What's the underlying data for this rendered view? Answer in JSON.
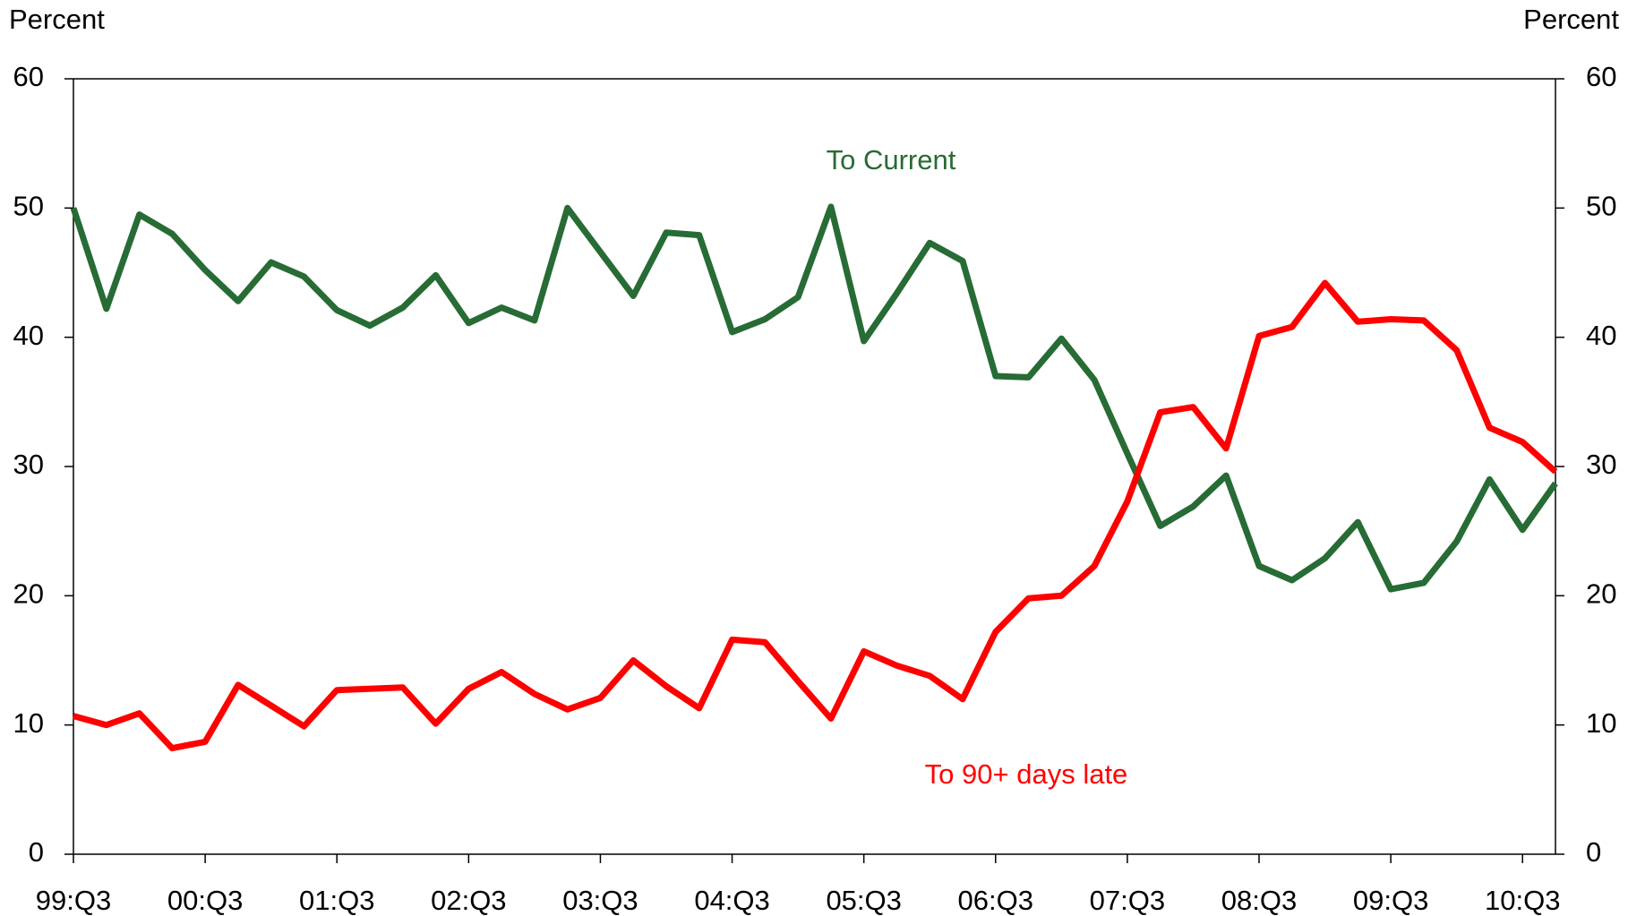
{
  "chart_data": {
    "type": "line",
    "y_label": "Percent",
    "y2_label": "Percent",
    "categories": [
      "99:Q3",
      null,
      null,
      null,
      "00:Q3",
      null,
      null,
      null,
      "01:Q3",
      null,
      null,
      null,
      "02:Q3",
      null,
      null,
      null,
      "03:Q3",
      null,
      null,
      null,
      "04:Q3",
      null,
      null,
      null,
      "05:Q3",
      null,
      null,
      null,
      "06:Q3",
      null,
      null,
      null,
      "07:Q3",
      null,
      null,
      null,
      "08:Q3",
      null,
      null,
      null,
      "09:Q3",
      null,
      null,
      null,
      "10:Q3",
      null
    ],
    "series": [
      {
        "name": "To Current",
        "color": "#276b35",
        "values": [
          50,
          42.2,
          49.5,
          48,
          45.2,
          42.8,
          45.8,
          44.7,
          42.1,
          40.9,
          42.3,
          44.8,
          41.1,
          42.3,
          41.3,
          50,
          46.6,
          43.2,
          48.1,
          47.9,
          40.4,
          41.4,
          43.1,
          50.1,
          39.7,
          43.4,
          47.3,
          45.9,
          37,
          36.9,
          39.9,
          36.7,
          31,
          25.4,
          26.9,
          29.3,
          22.3,
          21.2,
          22.9,
          25.7,
          20.5,
          21,
          24.2,
          29,
          25.1,
          28.7
        ]
      },
      {
        "name": "To 90+ days late",
        "color": "#ff0000",
        "values": [
          10.7,
          10,
          10.9,
          8.2,
          8.7,
          13.1,
          11.5,
          9.9,
          12.7,
          12.8,
          12.9,
          10.1,
          12.8,
          14.1,
          12.4,
          11.2,
          12.1,
          15,
          13,
          11.3,
          16.6,
          16.4,
          13.4,
          10.5,
          15.7,
          14.6,
          13.8,
          12,
          17.2,
          19.8,
          20,
          22.3,
          27.3,
          34.2,
          34.6,
          31.4,
          40.1,
          40.8,
          44.2,
          41.2,
          41.4,
          41.3,
          39,
          33,
          31.9,
          29.6
        ]
      }
    ],
    "ylim": [
      0,
      60
    ],
    "yticks": [
      0,
      10,
      20,
      30,
      40,
      50,
      60
    ],
    "y2lim": [
      0,
      60
    ],
    "y2ticks": [
      0,
      10,
      20,
      30,
      40,
      50,
      60
    ]
  }
}
